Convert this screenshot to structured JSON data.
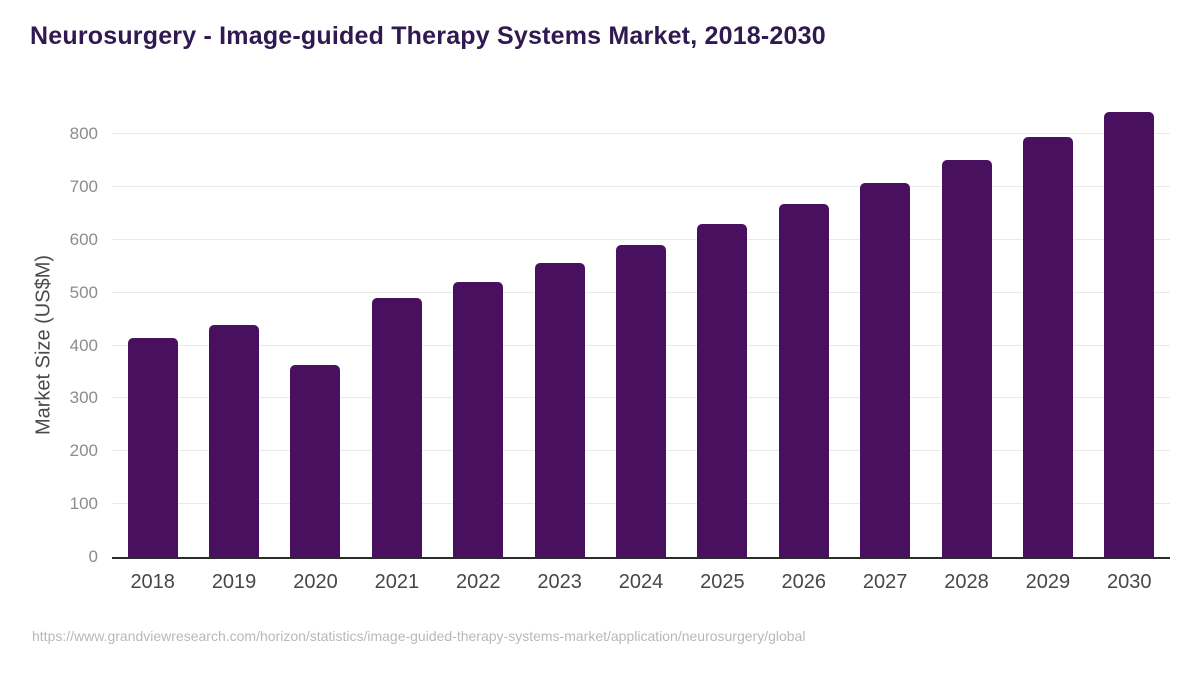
{
  "header": {
    "title": "Neurosurgery - Image-guided Therapy Systems Market, 2018-2030"
  },
  "chart_data": {
    "type": "bar",
    "title": "Neurosurgery - Image-guided Therapy Systems Market, 2018-2030",
    "categories": [
      "2018",
      "2019",
      "2020",
      "2021",
      "2022",
      "2023",
      "2024",
      "2025",
      "2026",
      "2027",
      "2028",
      "2029",
      "2030"
    ],
    "values": [
      414,
      439,
      363,
      490,
      520,
      556,
      591,
      630,
      668,
      707,
      750,
      794,
      842
    ],
    "xlabel": "",
    "ylabel": "Market Size (US$M)",
    "ylim": [
      0,
      800
    ],
    "yticks": [
      0,
      100,
      200,
      300,
      400,
      500,
      600,
      700,
      800
    ],
    "grid": true,
    "legend": false,
    "bar_color": "#4a1060"
  },
  "colors": {
    "title": "#2f1950",
    "bar": "#4a1060",
    "axis_line": "#2b2b2b",
    "gridline": "#e9e9e9",
    "y_tick_text": "#8c8c8c",
    "x_tick_text": "#474747",
    "source_text": "#b8b8b8"
  },
  "footer": {
    "source_url": "https://www.grandviewresearch.com/horizon/statistics/image-guided-therapy-systems-market/application/neurosurgery/global"
  }
}
